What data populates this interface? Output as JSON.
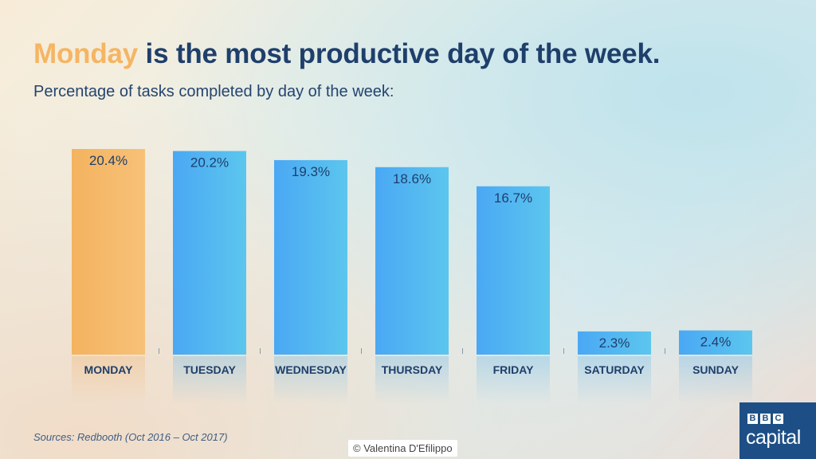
{
  "header": {
    "title_highlight": "Monday",
    "title_rest": " is the most productive day of the week.",
    "subtitle": "Percentage of tasks completed by day of the week:"
  },
  "footer": {
    "source": "Sources: Redbooth (Oct 2016 – Oct 2017)",
    "credit": "© Valentina D'Efilippo"
  },
  "logo": {
    "letters": [
      "B",
      "B",
      "C"
    ],
    "word": "capital"
  },
  "chart_data": {
    "type": "bar",
    "title": "Monday is the most productive day of the week.",
    "subtitle": "Percentage of tasks completed by day of the week:",
    "categories": [
      "MONDAY",
      "TUESDAY",
      "WEDNESDAY",
      "THURSDAY",
      "FRIDAY",
      "SATURDAY",
      "SUNDAY"
    ],
    "values": [
      20.4,
      20.2,
      19.3,
      18.6,
      16.7,
      2.3,
      2.4
    ],
    "labels": [
      "20.4%",
      "20.2%",
      "19.3%",
      "18.6%",
      "16.7%",
      "2.3%",
      "2.4%"
    ],
    "unit": "%",
    "highlight_index": 0,
    "colors": {
      "highlight": "#f5b461",
      "bar": "#4fb0f2",
      "label": "#1f3f6b",
      "tick": "#8a9aa8"
    },
    "grid": false,
    "legend": "none"
  }
}
